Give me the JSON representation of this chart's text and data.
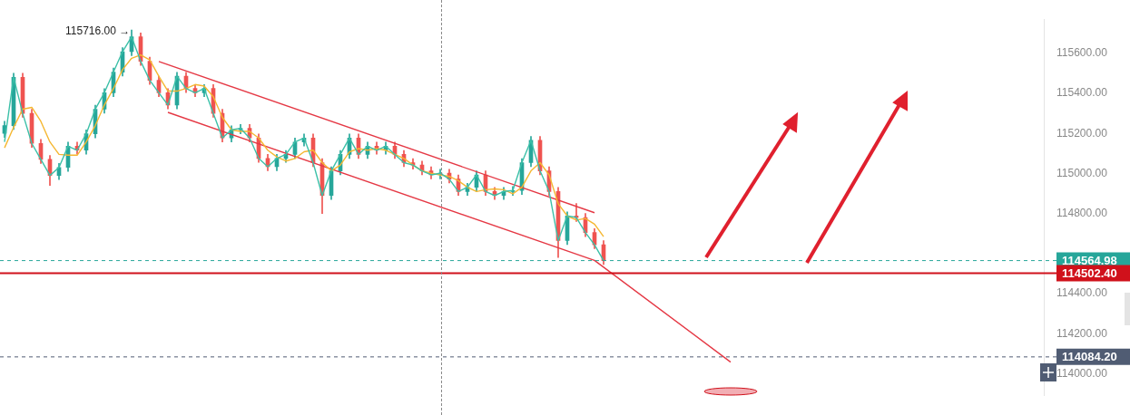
{
  "chart_data": {
    "type": "candlestick",
    "ylim": [
      113890,
      115770
    ],
    "tick_labels": "y",
    "categories": [
      null,
      null,
      null,
      null,
      null,
      null,
      null,
      null,
      null,
      null,
      null,
      null,
      null,
      null,
      null,
      null,
      null,
      null,
      null,
      null,
      null,
      null,
      null,
      null,
      null,
      null,
      null,
      null,
      null,
      null,
      null,
      null,
      null,
      null,
      null,
      null,
      null,
      null,
      null,
      null,
      null,
      null,
      null,
      null,
      null,
      null,
      null,
      null,
      null,
      null,
      null,
      null,
      null,
      null,
      null,
      null,
      null,
      null,
      null,
      null,
      null,
      null,
      null,
      null,
      null,
      null,
      null,
      null,
      null,
      null,
      null,
      null,
      null,
      null,
      null,
      null,
      null,
      null,
      null,
      null,
      null,
      null,
      null,
      null,
      null,
      null,
      null,
      null,
      null,
      null,
      null,
      null,
      null,
      null,
      null,
      null,
      null,
      null,
      null,
      null,
      null,
      null,
      null,
      null,
      null,
      null,
      null,
      null,
      null,
      null,
      null,
      null,
      null,
      null,
      null
    ],
    "yticks": [
      {
        "value": 114000,
        "label": "114000.00"
      },
      {
        "value": 114200,
        "label": "114200.00"
      },
      {
        "value": 114400,
        "label": "114400.00"
      },
      {
        "value": 114800,
        "label": "114800.00"
      },
      {
        "value": 115000,
        "label": "115000.00"
      },
      {
        "value": 115200,
        "label": "115200.00"
      },
      {
        "value": 115400,
        "label": "115400.00"
      },
      {
        "value": 115600,
        "label": "115600.00"
      }
    ],
    "series": [
      {
        "ohlc": [
          [
            115200,
            115260,
            115180,
            115239
          ],
          [
            115239,
            115500,
            115219,
            115480
          ],
          [
            115480,
            115500,
            115280,
            115300
          ],
          [
            115300,
            115320,
            115130,
            115150
          ],
          [
            115150,
            115170,
            115050,
            115070
          ],
          [
            115070,
            115090,
            114940,
            114990
          ],
          [
            114990,
            115050,
            114970,
            115030
          ],
          [
            115030,
            115156,
            115010,
            115136
          ],
          [
            115136,
            115156,
            115096,
            115116
          ],
          [
            115116,
            115218,
            115096,
            115198
          ],
          [
            115198,
            115341,
            115178,
            115321
          ],
          [
            115321,
            115423,
            115301,
            115403
          ],
          [
            115403,
            115526,
            115383,
            115506
          ],
          [
            115506,
            115628,
            115486,
            115608
          ],
          [
            115608,
            115716,
            115588,
            115682
          ],
          [
            115682,
            115702,
            115540,
            115560
          ],
          [
            115560,
            115580,
            115445,
            115465
          ],
          [
            115465,
            115485,
            115383,
            115403
          ],
          [
            115403,
            115423,
            115322,
            115342
          ],
          [
            115342,
            115505,
            115322,
            115485
          ],
          [
            115485,
            115505,
            115404,
            115424
          ],
          [
            115424,
            115444,
            115383,
            115403
          ],
          [
            115403,
            115444,
            115383,
            115424
          ],
          [
            115424,
            115444,
            115280,
            115300
          ],
          [
            115300,
            115320,
            115157,
            115177
          ],
          [
            115177,
            115238,
            115157,
            115218
          ],
          [
            115218,
            115245,
            115198,
            115225
          ],
          [
            115225,
            115245,
            115157,
            115177
          ],
          [
            115177,
            115197,
            115055,
            115075
          ],
          [
            115075,
            115095,
            115014,
            115034
          ],
          [
            115034,
            115095,
            115014,
            115075
          ],
          [
            115075,
            115115,
            115055,
            115095
          ],
          [
            115095,
            115177,
            115075,
            115157
          ],
          [
            115157,
            115197,
            115137,
            115177
          ],
          [
            115177,
            115197,
            115034,
            115054
          ],
          [
            115054,
            115074,
            114800,
            114890
          ],
          [
            114890,
            115033,
            114870,
            115013
          ],
          [
            115013,
            115115,
            114993,
            115095
          ],
          [
            115095,
            115197,
            115075,
            115177
          ],
          [
            115177,
            115197,
            115075,
            115095
          ],
          [
            115095,
            115156,
            115075,
            115136
          ],
          [
            115136,
            115156,
            115096,
            115116
          ],
          [
            115116,
            115156,
            115096,
            115136
          ],
          [
            115136,
            115156,
            115075,
            115095
          ],
          [
            115095,
            115115,
            115034,
            115054
          ],
          [
            115054,
            115074,
            115022,
            115042
          ],
          [
            115042,
            115062,
            114993,
            115013
          ],
          [
            115013,
            115033,
            114973,
            114993
          ],
          [
            114993,
            115021,
            114973,
            115001
          ],
          [
            115001,
            115021,
            114952,
            114972
          ],
          [
            114972,
            114992,
            114890,
            114910
          ],
          [
            114910,
            114951,
            114890,
            114931
          ],
          [
            114931,
            115013,
            114911,
            114993
          ],
          [
            114993,
            115013,
            114890,
            114910
          ],
          [
            114910,
            114930,
            114870,
            114890
          ],
          [
            114890,
            114930,
            114870,
            114910
          ],
          [
            114910,
            114935,
            114890,
            114915
          ],
          [
            114915,
            115074,
            114895,
            115054
          ],
          [
            115054,
            115185,
            115034,
            115165
          ],
          [
            115165,
            115185,
            114993,
            115013
          ],
          [
            115013,
            115033,
            114890,
            114910
          ],
          [
            114910,
            114930,
            114580,
            114665
          ],
          [
            114665,
            114808,
            114645,
            114788
          ],
          [
            114788,
            114850,
            114760,
            114780
          ],
          [
            114780,
            114800,
            114685,
            114705
          ],
          [
            114705,
            114725,
            114624,
            114644
          ],
          [
            114644,
            114664,
            114545,
            114565
          ],
          null,
          null,
          null,
          null,
          null,
          null,
          null,
          null,
          null,
          null,
          null,
          null,
          null,
          null,
          null,
          null,
          null,
          null,
          null,
          null,
          null,
          null,
          null,
          null,
          null,
          null,
          null,
          null,
          null,
          null,
          null,
          null,
          null,
          null,
          null,
          null,
          null,
          null,
          null,
          null,
          null,
          null,
          null,
          null,
          null,
          null,
          null,
          null
        ],
        "colors": [
          "#26a69a",
          "#26a69a",
          "#ef5350",
          "#ef5350",
          "#ef5350",
          "#ef5350",
          "#26a69a",
          "#26a69a",
          "#ef5350",
          "#26a69a",
          "#26a69a",
          "#26a69a",
          "#26a69a",
          "#26a69a",
          "#26a69a",
          "#ef5350",
          "#ef5350",
          "#ef5350",
          "#ef5350",
          "#26a69a",
          "#ef5350",
          "#ef5350",
          "#26a69a",
          "#ef5350",
          "#ef5350",
          "#26a69a",
          "#26a69a",
          "#ef5350",
          "#ef5350",
          "#ef5350",
          "#26a69a",
          "#26a69a",
          "#26a69a",
          "#26a69a",
          "#ef5350",
          "#ef5350",
          "#26a69a",
          "#26a69a",
          "#26a69a",
          "#ef5350",
          "#26a69a",
          "#ef5350",
          "#26a69a",
          "#ef5350",
          "#ef5350",
          "#ef5350",
          "#ef5350",
          "#ef5350",
          "#26a69a",
          "#ef5350",
          "#ef5350",
          "#26a69a",
          "#26a69a",
          "#ef5350",
          "#ef5350",
          "#26a69a",
          "#26a69a",
          "#26a69a",
          "#26a69a",
          "#ef5350",
          "#ef5350",
          "#ef5350",
          "#26a69a",
          "#ef5350",
          "#ef5350",
          "#ef5350",
          "#ef5350",
          null,
          null,
          null,
          null,
          null,
          null,
          null,
          null,
          null,
          null,
          null,
          null,
          null,
          null,
          null,
          null,
          null,
          null,
          null,
          null,
          null,
          null,
          null,
          null,
          null,
          null,
          null,
          null,
          null,
          null,
          null,
          null,
          null,
          null,
          null,
          null,
          null,
          null,
          null,
          null,
          null,
          null,
          null,
          null,
          null,
          null,
          null,
          null
        ]
      },
      {
        "type": "line",
        "color": "#3cc0a8",
        "values": [
          115157,
          115480,
          115300,
          115150,
          115070,
          114990,
          115030,
          115136,
          115116,
          115198,
          115321,
          115403,
          115506,
          115608,
          115682,
          115560,
          115465,
          115403,
          115342,
          115485,
          115424,
          115403,
          115424,
          115300,
          115177,
          115218,
          115225,
          115177,
          115075,
          115034,
          115075,
          115095,
          115157,
          115177,
          115054,
          114890,
          115013,
          115095,
          115177,
          115095,
          115136,
          115116,
          115136,
          115095,
          115054,
          115042,
          115013,
          114993,
          115001,
          114972,
          114910,
          114931,
          114993,
          114910,
          114890,
          114910,
          114915,
          115054,
          115165,
          115013,
          114910,
          114665,
          114788,
          114780,
          114705,
          114644,
          114565,
          null,
          null,
          null,
          null,
          null,
          null,
          null,
          null,
          null,
          null,
          null,
          null,
          null,
          null,
          null,
          null,
          null,
          null,
          null,
          null,
          null,
          null,
          null,
          null,
          null,
          null,
          null,
          null,
          null,
          null,
          null,
          null,
          null,
          null,
          null,
          null,
          null,
          null,
          null,
          null,
          null,
          null,
          null,
          null,
          null,
          null,
          null,
          null
        ]
      },
      {
        "type": "line",
        "color": "#f5b731",
        "values": [
          115128,
          115230,
          115321,
          115330,
          115260,
          115157,
          115095,
          115091,
          115091,
          115157,
          115239,
          115342,
          115424,
          115518,
          115575,
          115592,
          115567,
          115485,
          115411,
          115411,
          115424,
          115444,
          115436,
          115383,
          115280,
          115218,
          115210,
          115210,
          115177,
          115116,
          115083,
          115062,
          115075,
          115108,
          115116,
          115054,
          115013,
          115042,
          115108,
          115124,
          115116,
          115124,
          115116,
          115095,
          115075,
          115042,
          115013,
          115001,
          114993,
          114985,
          114964,
          114931,
          114910,
          114919,
          114923,
          114919,
          114898,
          114931,
          115013,
          115054,
          114993,
          114849,
          114788,
          114767,
          114775,
          114747,
          114685,
          null,
          null,
          null,
          null,
          null,
          null,
          null,
          null,
          null,
          null,
          null,
          null,
          null,
          null,
          null,
          null,
          null,
          null,
          null,
          null,
          null,
          null,
          null,
          null,
          null,
          null,
          null,
          null,
          null,
          null,
          null,
          null,
          null,
          null,
          null,
          null,
          null,
          null,
          null,
          null,
          null,
          null,
          null,
          null,
          null,
          null,
          null,
          null
        ]
      },
      {
        "type": "line",
        "color": "#e53945",
        "values": [
          null,
          null,
          null,
          null,
          null,
          null,
          null,
          null,
          null,
          null,
          null,
          null,
          null,
          null,
          null,
          null,
          null,
          115559,
          null,
          null,
          null,
          null,
          null,
          null,
          null,
          null,
          null,
          null,
          null,
          null,
          null,
          null,
          null,
          null,
          null,
          null,
          null,
          null,
          null,
          null,
          null,
          null,
          null,
          null,
          null,
          null,
          null,
          null,
          null,
          null,
          null,
          null,
          null,
          null,
          null,
          null,
          null,
          null,
          null,
          null,
          null,
          null,
          null,
          null,
          null,
          114804,
          null,
          null,
          null,
          null,
          null,
          null,
          null,
          null,
          null,
          null,
          null,
          null,
          null,
          null,
          null,
          null,
          null,
          null,
          null,
          null,
          null,
          null,
          null,
          null,
          null,
          null,
          null,
          null,
          null,
          null,
          null,
          null,
          null,
          null,
          null,
          null,
          null,
          null,
          null,
          null,
          null,
          null,
          null,
          null,
          null,
          null,
          null,
          null,
          null
        ]
      },
      {
        "type": "line",
        "color": "#e53945",
        "values": [
          null,
          null,
          null,
          null,
          null,
          null,
          null,
          null,
          null,
          null,
          null,
          null,
          null,
          null,
          null,
          null,
          null,
          null,
          115305,
          null,
          null,
          null,
          null,
          null,
          null,
          null,
          null,
          null,
          null,
          null,
          null,
          null,
          null,
          null,
          null,
          null,
          null,
          null,
          null,
          null,
          null,
          null,
          null,
          null,
          null,
          null,
          null,
          null,
          null,
          null,
          null,
          null,
          null,
          null,
          null,
          null,
          null,
          null,
          null,
          null,
          null,
          null,
          null,
          null,
          null,
          114566,
          null,
          null,
          null,
          null,
          null,
          null,
          null,
          null,
          null,
          null,
          null,
          null,
          null,
          null,
          114058,
          null,
          null,
          null,
          null,
          null,
          null,
          null,
          null,
          null,
          null,
          null,
          null,
          null,
          null,
          null,
          null,
          null,
          null,
          null,
          null,
          null,
          null,
          null,
          null,
          null,
          null,
          null,
          null,
          null,
          null,
          null,
          null,
          null,
          null
        ]
      }
    ],
    "ref_lines": [
      {
        "axis": "y",
        "value": 114564.98,
        "label": "114564.98",
        "color": "#26a69a",
        "line_style": "dashed"
      },
      {
        "axis": "y",
        "value": 114502.4,
        "label": "114502.40",
        "color": "#d0111b",
        "line_style": "solid"
      },
      {
        "axis": "y",
        "value": 114084.2,
        "label": "114084.20",
        "color": "#505c73",
        "line_style": "dashed"
      }
    ],
    "annotations": [
      "115716.00 →"
    ]
  }
}
